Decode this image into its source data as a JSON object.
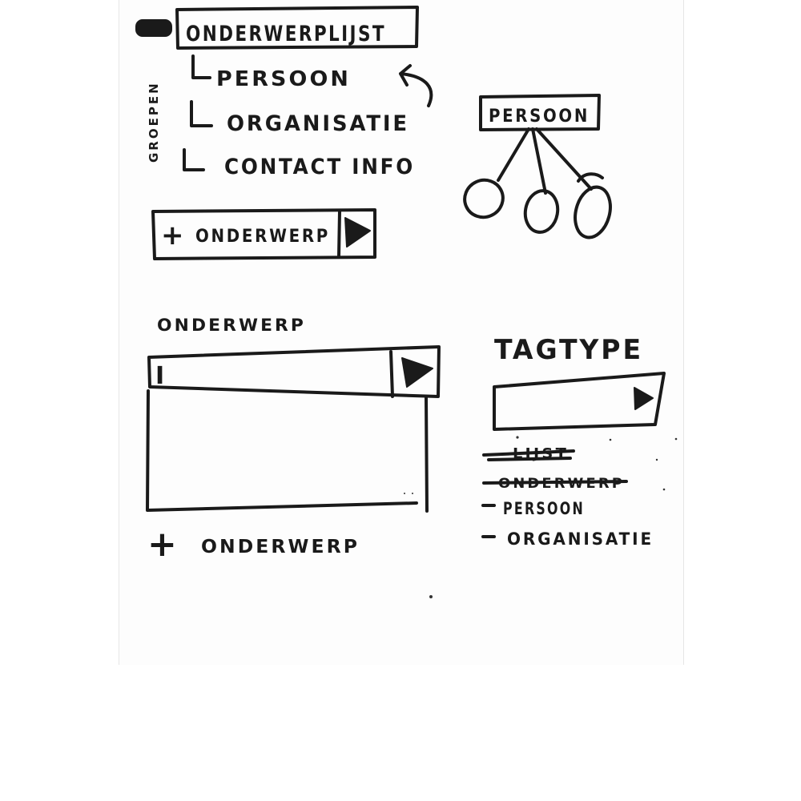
{
  "groups_panel": {
    "side_label": "GROEPEN",
    "header": "ONDERWERPLIJST",
    "items": [
      {
        "label": "PERSOON"
      },
      {
        "label": "ORGANISATIE"
      },
      {
        "label": "CONTACT INFO"
      }
    ],
    "add_button": {
      "plus": "+",
      "label": "ONDERWERP"
    }
  },
  "tree": {
    "root": "PERSOON",
    "children_count": 3
  },
  "subject_editor": {
    "title": "ONDERWERP",
    "input_cursor": "I",
    "add_link": {
      "plus": "+",
      "label": "ONDERWERP"
    }
  },
  "tag_type": {
    "title": "TAGTYPE",
    "options": [
      {
        "label": "LIJST",
        "struck": true
      },
      {
        "label": "ONDERWERP",
        "struck": true
      },
      {
        "label": "PERSOON",
        "struck": false
      },
      {
        "label": "ORGANISATIE",
        "struck": false
      }
    ]
  }
}
